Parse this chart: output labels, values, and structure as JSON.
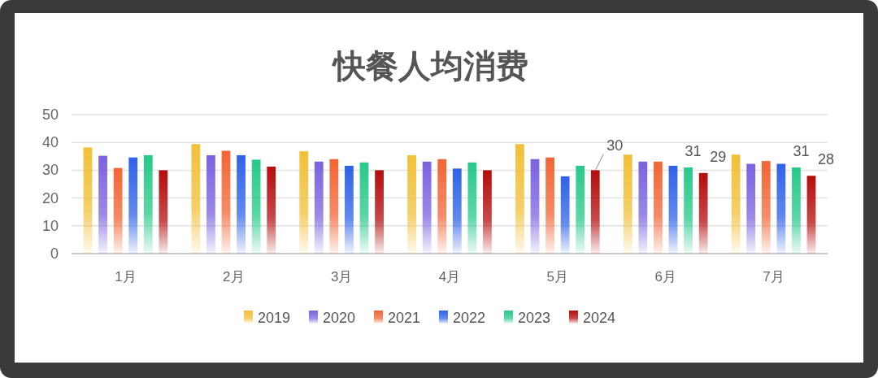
{
  "chart_data": {
    "type": "bar",
    "title": "快餐人均消费",
    "categories": [
      "1月",
      "2月",
      "3月",
      "4月",
      "5月",
      "6月",
      "7月"
    ],
    "series": [
      {
        "name": "2019",
        "color": "#f2c037",
        "values": [
          38.2,
          39.4,
          36.8,
          35.4,
          39.4,
          35.6,
          35.6
        ]
      },
      {
        "name": "2020",
        "color": "#7b62e0",
        "values": [
          35.2,
          35.4,
          33.1,
          33.1,
          34,
          33.1,
          32.3
        ]
      },
      {
        "name": "2021",
        "color": "#f26535",
        "values": [
          30.8,
          37,
          34,
          34,
          34.6,
          33.1,
          33.3
        ]
      },
      {
        "name": "2022",
        "color": "#2e62e8",
        "values": [
          34.6,
          35.4,
          31.6,
          30.6,
          27.8,
          31.6,
          32.3
        ]
      },
      {
        "name": "2023",
        "color": "#27c98a",
        "values": [
          35.4,
          33.8,
          32.8,
          32.8,
          31.6,
          31,
          31
        ],
        "value_labels": [
          null,
          null,
          null,
          null,
          null,
          "31",
          "31"
        ]
      },
      {
        "name": "2024",
        "color": "#b50d0d",
        "values": [
          30,
          31.3,
          30,
          30,
          30,
          29,
          28
        ],
        "value_labels": [
          null,
          null,
          null,
          null,
          "30",
          "29",
          "28"
        ]
      }
    ],
    "ylim": [
      0,
      50
    ],
    "yticks": [
      0,
      10,
      20,
      30,
      40,
      50
    ],
    "grid": "y",
    "legend": "bottom"
  }
}
